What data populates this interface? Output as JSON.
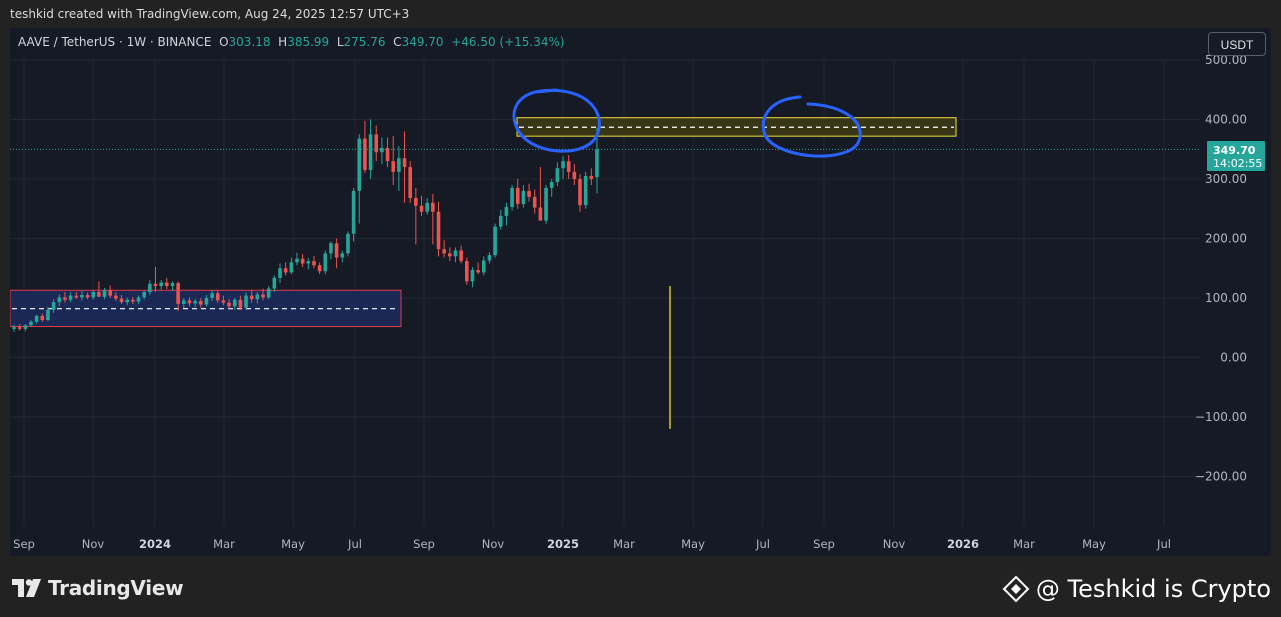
{
  "header": {
    "attribution": "teshkid created with TradingView.com, Aug 24, 2025 12:57 UTC+3"
  },
  "legend": {
    "symbol": "AAVE / TetherUS · 1W · BINANCE",
    "o_label": "O",
    "o_value": "303.18",
    "h_label": "H",
    "h_value": "385.99",
    "l_label": "L",
    "l_value": "275.76",
    "c_label": "C",
    "c_value": "349.70",
    "change": "+46.50 (+15.34%)"
  },
  "currency_button": "USDT",
  "price_tag": {
    "price": "349.70",
    "countdown": "14:02:55"
  },
  "footer": {
    "logo_text": "TradingView",
    "watermark": "@ Teshkid is Crypto"
  },
  "colors": {
    "up": "#26a69a",
    "down": "#ef5350",
    "annotation_blue": "#2962ff",
    "zone_yellow": "#f0e040",
    "zone_red": "#e53949"
  },
  "chart_data": {
    "type": "candlestick",
    "title": "AAVE / TetherUS · 1W · BINANCE",
    "xlabel": "",
    "ylabel": "",
    "ylim": [
      -250,
      520
    ],
    "y_ticks": [
      500,
      400,
      300,
      200,
      100,
      0,
      -100,
      -200
    ],
    "y_tick_labels": [
      "500.00",
      "400.00",
      "300.00",
      "200.00",
      "100.00",
      "0.00",
      "−100.00",
      "−200.00"
    ],
    "x_ticks": [
      "Sep",
      "Nov",
      "2024",
      "Mar",
      "May",
      "Jul",
      "Sep",
      "Nov",
      "2025",
      "Mar",
      "May",
      "Jul",
      "Sep",
      "Nov",
      "2026",
      "Mar",
      "May",
      "Jul"
    ],
    "bold_x_ticks": [
      "2024",
      "2025",
      "2026"
    ],
    "grid": true,
    "current_price": 349.7,
    "zones": [
      {
        "name": "resistance",
        "low": 372,
        "high": 403,
        "mid": 387,
        "color": "#f0e040"
      },
      {
        "name": "support",
        "low": 52,
        "high": 113,
        "mid": 82,
        "color": "#e53949"
      }
    ],
    "projection_line": {
      "from": 120,
      "to": -120
    },
    "candles": [
      {
        "o": 48,
        "h": 55,
        "l": 43,
        "c": 51
      },
      {
        "o": 51,
        "h": 56,
        "l": 45,
        "c": 48
      },
      {
        "o": 48,
        "h": 56,
        "l": 44,
        "c": 54
      },
      {
        "o": 54,
        "h": 63,
        "l": 52,
        "c": 60
      },
      {
        "o": 60,
        "h": 72,
        "l": 57,
        "c": 70
      },
      {
        "o": 70,
        "h": 74,
        "l": 60,
        "c": 63
      },
      {
        "o": 63,
        "h": 85,
        "l": 61,
        "c": 80
      },
      {
        "o": 80,
        "h": 98,
        "l": 75,
        "c": 93
      },
      {
        "o": 93,
        "h": 106,
        "l": 86,
        "c": 101
      },
      {
        "o": 101,
        "h": 110,
        "l": 92,
        "c": 97
      },
      {
        "o": 97,
        "h": 110,
        "l": 93,
        "c": 104
      },
      {
        "o": 104,
        "h": 110,
        "l": 98,
        "c": 101
      },
      {
        "o": 101,
        "h": 112,
        "l": 96,
        "c": 105
      },
      {
        "o": 105,
        "h": 109,
        "l": 98,
        "c": 101
      },
      {
        "o": 101,
        "h": 114,
        "l": 97,
        "c": 110
      },
      {
        "o": 110,
        "h": 128,
        "l": 104,
        "c": 102
      },
      {
        "o": 102,
        "h": 117,
        "l": 98,
        "c": 113
      },
      {
        "o": 113,
        "h": 121,
        "l": 100,
        "c": 104
      },
      {
        "o": 104,
        "h": 110,
        "l": 95,
        "c": 99
      },
      {
        "o": 99,
        "h": 105,
        "l": 90,
        "c": 93
      },
      {
        "o": 93,
        "h": 101,
        "l": 88,
        "c": 97
      },
      {
        "o": 97,
        "h": 102,
        "l": 90,
        "c": 94
      },
      {
        "o": 94,
        "h": 104,
        "l": 90,
        "c": 101
      },
      {
        "o": 101,
        "h": 112,
        "l": 97,
        "c": 110
      },
      {
        "o": 110,
        "h": 130,
        "l": 105,
        "c": 124
      },
      {
        "o": 124,
        "h": 152,
        "l": 110,
        "c": 120
      },
      {
        "o": 120,
        "h": 130,
        "l": 114,
        "c": 126
      },
      {
        "o": 126,
        "h": 134,
        "l": 115,
        "c": 120
      },
      {
        "o": 120,
        "h": 128,
        "l": 112,
        "c": 125
      },
      {
        "o": 125,
        "h": 128,
        "l": 78,
        "c": 90
      },
      {
        "o": 90,
        "h": 100,
        "l": 83,
        "c": 96
      },
      {
        "o": 96,
        "h": 101,
        "l": 86,
        "c": 91
      },
      {
        "o": 91,
        "h": 99,
        "l": 85,
        "c": 95
      },
      {
        "o": 95,
        "h": 100,
        "l": 84,
        "c": 89
      },
      {
        "o": 89,
        "h": 105,
        "l": 86,
        "c": 100
      },
      {
        "o": 100,
        "h": 113,
        "l": 95,
        "c": 108
      },
      {
        "o": 108,
        "h": 113,
        "l": 92,
        "c": 96
      },
      {
        "o": 96,
        "h": 104,
        "l": 88,
        "c": 92
      },
      {
        "o": 92,
        "h": 98,
        "l": 82,
        "c": 86
      },
      {
        "o": 86,
        "h": 100,
        "l": 80,
        "c": 97
      },
      {
        "o": 97,
        "h": 104,
        "l": 80,
        "c": 84
      },
      {
        "o": 84,
        "h": 109,
        "l": 80,
        "c": 104
      },
      {
        "o": 104,
        "h": 114,
        "l": 92,
        "c": 98
      },
      {
        "o": 98,
        "h": 110,
        "l": 91,
        "c": 106
      },
      {
        "o": 106,
        "h": 116,
        "l": 96,
        "c": 101
      },
      {
        "o": 101,
        "h": 120,
        "l": 98,
        "c": 116
      },
      {
        "o": 116,
        "h": 138,
        "l": 110,
        "c": 134
      },
      {
        "o": 134,
        "h": 158,
        "l": 125,
        "c": 150
      },
      {
        "o": 150,
        "h": 160,
        "l": 138,
        "c": 143
      },
      {
        "o": 143,
        "h": 168,
        "l": 140,
        "c": 160
      },
      {
        "o": 160,
        "h": 176,
        "l": 155,
        "c": 166
      },
      {
        "o": 166,
        "h": 174,
        "l": 152,
        "c": 158
      },
      {
        "o": 158,
        "h": 167,
        "l": 148,
        "c": 162
      },
      {
        "o": 162,
        "h": 171,
        "l": 150,
        "c": 155
      },
      {
        "o": 155,
        "h": 160,
        "l": 140,
        "c": 145
      },
      {
        "o": 145,
        "h": 180,
        "l": 140,
        "c": 175
      },
      {
        "o": 175,
        "h": 195,
        "l": 165,
        "c": 192
      },
      {
        "o": 192,
        "h": 200,
        "l": 150,
        "c": 168
      },
      {
        "o": 168,
        "h": 180,
        "l": 160,
        "c": 175
      },
      {
        "o": 175,
        "h": 212,
        "l": 170,
        "c": 208
      },
      {
        "o": 208,
        "h": 285,
        "l": 195,
        "c": 280
      },
      {
        "o": 280,
        "h": 375,
        "l": 225,
        "c": 368
      },
      {
        "o": 368,
        "h": 398,
        "l": 310,
        "c": 315
      },
      {
        "o": 315,
        "h": 400,
        "l": 300,
        "c": 375
      },
      {
        "o": 375,
        "h": 390,
        "l": 330,
        "c": 345
      },
      {
        "o": 345,
        "h": 370,
        "l": 325,
        "c": 352
      },
      {
        "o": 352,
        "h": 370,
        "l": 320,
        "c": 330
      },
      {
        "o": 330,
        "h": 372,
        "l": 290,
        "c": 312
      },
      {
        "o": 312,
        "h": 355,
        "l": 280,
        "c": 335
      },
      {
        "o": 335,
        "h": 380,
        "l": 260,
        "c": 320
      },
      {
        "o": 320,
        "h": 330,
        "l": 260,
        "c": 268
      },
      {
        "o": 268,
        "h": 285,
        "l": 190,
        "c": 255
      },
      {
        "o": 255,
        "h": 272,
        "l": 238,
        "c": 245
      },
      {
        "o": 245,
        "h": 268,
        "l": 240,
        "c": 260
      },
      {
        "o": 260,
        "h": 275,
        "l": 190,
        "c": 245
      },
      {
        "o": 245,
        "h": 262,
        "l": 170,
        "c": 182
      },
      {
        "o": 182,
        "h": 197,
        "l": 168,
        "c": 175
      },
      {
        "o": 175,
        "h": 185,
        "l": 162,
        "c": 170
      },
      {
        "o": 170,
        "h": 185,
        "l": 160,
        "c": 180
      },
      {
        "o": 180,
        "h": 188,
        "l": 158,
        "c": 162
      },
      {
        "o": 162,
        "h": 168,
        "l": 122,
        "c": 128
      },
      {
        "o": 128,
        "h": 152,
        "l": 118,
        "c": 147
      },
      {
        "o": 147,
        "h": 160,
        "l": 140,
        "c": 143
      },
      {
        "o": 143,
        "h": 170,
        "l": 138,
        "c": 163
      },
      {
        "o": 163,
        "h": 177,
        "l": 158,
        "c": 172
      },
      {
        "o": 172,
        "h": 225,
        "l": 168,
        "c": 220
      },
      {
        "o": 220,
        "h": 248,
        "l": 215,
        "c": 238
      },
      {
        "o": 238,
        "h": 260,
        "l": 222,
        "c": 253
      },
      {
        "o": 253,
        "h": 290,
        "l": 247,
        "c": 285
      },
      {
        "o": 285,
        "h": 300,
        "l": 250,
        "c": 258
      },
      {
        "o": 258,
        "h": 290,
        "l": 252,
        "c": 280
      },
      {
        "o": 280,
        "h": 292,
        "l": 262,
        "c": 270
      },
      {
        "o": 270,
        "h": 282,
        "l": 242,
        "c": 252
      },
      {
        "o": 252,
        "h": 320,
        "l": 232,
        "c": 230
      },
      {
        "o": 230,
        "h": 290,
        "l": 225,
        "c": 285
      },
      {
        "o": 285,
        "h": 300,
        "l": 270,
        "c": 295
      },
      {
        "o": 295,
        "h": 328,
        "l": 288,
        "c": 318
      },
      {
        "o": 318,
        "h": 338,
        "l": 300,
        "c": 330
      },
      {
        "o": 330,
        "h": 340,
        "l": 300,
        "c": 312
      },
      {
        "o": 312,
        "h": 325,
        "l": 290,
        "c": 300
      },
      {
        "o": 300,
        "h": 308,
        "l": 245,
        "c": 256
      },
      {
        "o": 256,
        "h": 312,
        "l": 250,
        "c": 305
      },
      {
        "o": 305,
        "h": 318,
        "l": 290,
        "c": 300
      },
      {
        "o": 303.18,
        "h": 385.99,
        "l": 275.76,
        "c": 349.7
      }
    ]
  }
}
